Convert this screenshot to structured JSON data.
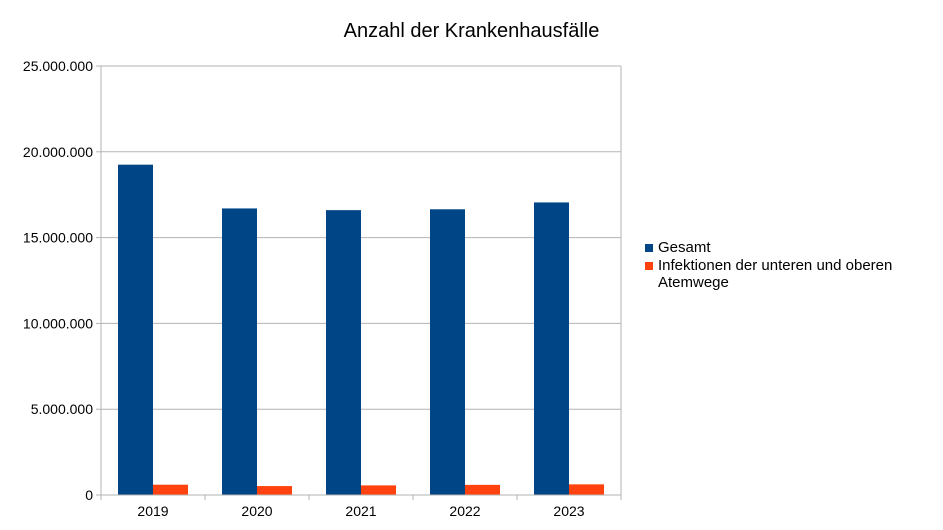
{
  "chart_data": {
    "type": "bar",
    "title": "Anzahl der Krankenhausfälle",
    "categories": [
      "2019",
      "2020",
      "2021",
      "2022",
      "2023"
    ],
    "series": [
      {
        "name": "Gesamt",
        "color": "#004586",
        "values": [
          19250000,
          16700000,
          16600000,
          16650000,
          17050000
        ]
      },
      {
        "name": "Infektionen der unteren und oberen Atemwege",
        "color": "#ff420e",
        "values": [
          600000,
          520000,
          560000,
          590000,
          620000
        ]
      }
    ],
    "ylim": [
      0,
      25000000
    ],
    "yticks": [
      0,
      5000000,
      10000000,
      15000000,
      20000000,
      25000000
    ],
    "ytick_labels": [
      "0",
      "5.000.000",
      "10.000.000",
      "15.000.000",
      "20.000.000",
      "25.000.000"
    ],
    "grid": true,
    "legend_position": "right"
  }
}
